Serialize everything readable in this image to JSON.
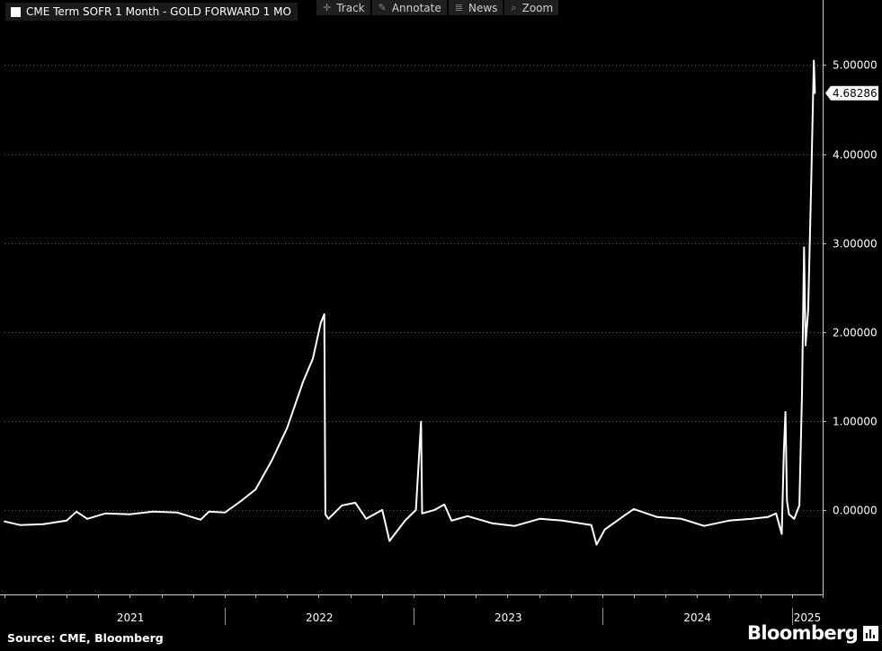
{
  "toolbar": {
    "track": {
      "label": "Track",
      "icon": "crosshair-icon"
    },
    "annotate": {
      "label": "Annotate",
      "icon": "pencil-icon"
    },
    "news": {
      "label": "News",
      "icon": "news-icon"
    },
    "zoom": {
      "label": "Zoom",
      "icon": "magnifier-icon"
    }
  },
  "source": "Source: CME, Bloomberg",
  "brand": "Bloomberg",
  "chart_data": {
    "type": "line",
    "legend_position": "top-left",
    "grid": true,
    "background": "#000000",
    "line_color": "#ffffff",
    "series": [
      {
        "name": "CME Term SOFR 1 Month - GOLD FORWARD 1 MO",
        "last_value_label": "4.68286",
        "points": [
          [
            "2020-11-01",
            -0.13
          ],
          [
            "2020-12-01",
            -0.17
          ],
          [
            "2021-01-15",
            -0.16
          ],
          [
            "2021-03-01",
            -0.12
          ],
          [
            "2021-03-20",
            -0.02
          ],
          [
            "2021-04-10",
            -0.1
          ],
          [
            "2021-05-15",
            -0.04
          ],
          [
            "2021-07-01",
            -0.05
          ],
          [
            "2021-08-15",
            -0.02
          ],
          [
            "2021-10-01",
            -0.03
          ],
          [
            "2021-11-15",
            -0.11
          ],
          [
            "2021-12-01",
            -0.02
          ],
          [
            "2022-01-01",
            -0.03
          ],
          [
            "2022-02-01",
            0.1
          ],
          [
            "2022-03-01",
            0.23
          ],
          [
            "2022-04-01",
            0.55
          ],
          [
            "2022-05-01",
            0.92
          ],
          [
            "2022-06-01",
            1.44
          ],
          [
            "2022-06-20",
            1.7
          ],
          [
            "2022-07-05",
            2.1
          ],
          [
            "2022-07-12",
            2.2
          ],
          [
            "2022-07-14",
            -0.05
          ],
          [
            "2022-07-20",
            -0.1
          ],
          [
            "2022-08-15",
            0.05
          ],
          [
            "2022-09-10",
            0.08
          ],
          [
            "2022-10-01",
            -0.1
          ],
          [
            "2022-11-01",
            0.0
          ],
          [
            "2022-11-15",
            -0.35
          ],
          [
            "2022-12-15",
            -0.12
          ],
          [
            "2023-01-05",
            0.0
          ],
          [
            "2023-01-15",
            0.99
          ],
          [
            "2023-01-17",
            -0.04
          ],
          [
            "2023-02-10",
            0.0
          ],
          [
            "2023-03-01",
            0.06
          ],
          [
            "2023-03-15",
            -0.12
          ],
          [
            "2023-04-15",
            -0.07
          ],
          [
            "2023-06-01",
            -0.15
          ],
          [
            "2023-07-15",
            -0.18
          ],
          [
            "2023-09-01",
            -0.1
          ],
          [
            "2023-10-15",
            -0.12
          ],
          [
            "2023-12-10",
            -0.17
          ],
          [
            "2023-12-20",
            -0.39
          ],
          [
            "2024-01-05",
            -0.22
          ],
          [
            "2024-02-15",
            -0.05
          ],
          [
            "2024-03-01",
            0.01
          ],
          [
            "2024-04-15",
            -0.08
          ],
          [
            "2024-06-01",
            -0.1
          ],
          [
            "2024-07-15",
            -0.18
          ],
          [
            "2024-09-01",
            -0.12
          ],
          [
            "2024-10-15",
            -0.1
          ],
          [
            "2024-11-15",
            -0.08
          ],
          [
            "2024-12-01",
            -0.04
          ],
          [
            "2024-12-12",
            -0.27
          ],
          [
            "2024-12-16",
            0.65
          ],
          [
            "2024-12-19",
            1.1
          ],
          [
            "2024-12-22",
            0.1
          ],
          [
            "2024-12-26",
            -0.05
          ],
          [
            "2025-01-05",
            -0.1
          ],
          [
            "2025-01-15",
            0.05
          ],
          [
            "2025-01-20",
            1.3
          ],
          [
            "2025-01-24",
            2.95
          ],
          [
            "2025-01-27",
            1.85
          ],
          [
            "2025-02-01",
            2.25
          ],
          [
            "2025-02-07",
            3.7
          ],
          [
            "2025-02-12",
            5.05
          ],
          [
            "2025-02-14",
            4.68286
          ]
        ]
      }
    ],
    "x_ticks": [
      "2021",
      "2022",
      "2023",
      "2024",
      "2025"
    ],
    "y_ticks": [
      "0.00000",
      "1.00000",
      "2.00000",
      "3.00000",
      "4.00000",
      "5.00000"
    ],
    "ylim": [
      -0.95,
      5.65
    ],
    "xlim": [
      "2020-11-01",
      "2025-03-01"
    ]
  }
}
